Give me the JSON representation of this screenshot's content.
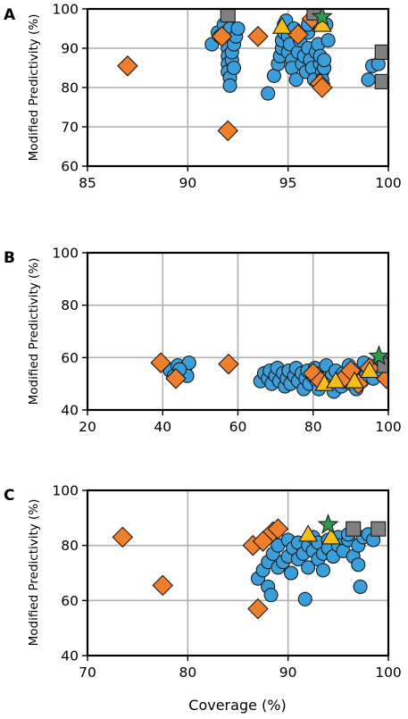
{
  "chart_data": [
    {
      "panel": "A",
      "type": "scatter",
      "xlim": [
        85,
        100
      ],
      "ylim": [
        60,
        100
      ],
      "xticks": [
        "85",
        "90",
        "95",
        "100"
      ],
      "yticks": [
        "60",
        "70",
        "80",
        "90",
        "100"
      ],
      "xlabel": "",
      "ylabel": "Modified Predictivity (%)",
      "grid": true,
      "series": [
        {
          "marker": "circle",
          "color": "#3a9edb",
          "points": [
            [
              91.2,
              91
            ],
            [
              91.5,
              94
            ],
            [
              91.6,
              93
            ],
            [
              91.8,
              96
            ],
            [
              91.9,
              92
            ],
            [
              92,
              90
            ],
            [
              92,
              88
            ],
            [
              92,
              86
            ],
            [
              92,
              84
            ],
            [
              92.1,
              95
            ],
            [
              92.1,
              82.5
            ],
            [
              92.2,
              87
            ],
            [
              92.2,
              89
            ],
            [
              92.3,
              85
            ],
            [
              92.3,
              91
            ],
            [
              92.4,
              93
            ],
            [
              92.1,
              80.5
            ],
            [
              92.5,
              95
            ],
            [
              94,
              78.5
            ],
            [
              94.3,
              83
            ],
            [
              94.5,
              86
            ],
            [
              94.6,
              88
            ],
            [
              94.7,
              90
            ],
            [
              94.7,
              92
            ],
            [
              94.8,
              94
            ],
            [
              94.8,
              96
            ],
            [
              94.9,
              97
            ],
            [
              95,
              93
            ],
            [
              95,
              89
            ],
            [
              95.1,
              91
            ],
            [
              95.2,
              87
            ],
            [
              95.2,
              85
            ],
            [
              95.3,
              95
            ],
            [
              95.4,
              82
            ],
            [
              95.5,
              89
            ],
            [
              95.6,
              92
            ],
            [
              95.7,
              86
            ],
            [
              95.8,
              88
            ],
            [
              95.9,
              84
            ],
            [
              96,
              90
            ],
            [
              96,
              94
            ],
            [
              96,
              96
            ],
            [
              96.1,
              87
            ],
            [
              96.2,
              85
            ],
            [
              96.3,
              82
            ],
            [
              96.4,
              89
            ],
            [
              96.5,
              91
            ],
            [
              96.6,
              86
            ],
            [
              96.6,
              88
            ],
            [
              96.7,
              84
            ],
            [
              96.7,
              82
            ],
            [
              96.8,
              85
            ],
            [
              96.8,
              87
            ],
            [
              96.9,
              96
            ],
            [
              97,
              92
            ],
            [
              99,
              82
            ],
            [
              99.2,
              85.5
            ],
            [
              99.5,
              86
            ]
          ]
        },
        {
          "marker": "diamond",
          "color": "#f07f2c",
          "points": [
            [
              87,
              85.5
            ],
            [
              91.7,
              93
            ],
            [
              92,
              69
            ],
            [
              93.5,
              93
            ],
            [
              95.5,
              93.5
            ],
            [
              96.2,
              97.5
            ],
            [
              96.6,
              81
            ],
            [
              96.7,
              80
            ]
          ]
        },
        {
          "marker": "triangle",
          "color": "#f5bd17",
          "points": [
            [
              94.7,
              95.5
            ],
            [
              96.7,
              96
            ]
          ]
        },
        {
          "marker": "square",
          "color": "#808080",
          "points": [
            [
              92,
              98.5
            ],
            [
              96.3,
              99
            ],
            [
              99.7,
              89
            ],
            [
              99.7,
              81.5
            ]
          ]
        },
        {
          "marker": "star",
          "color": "#2e9a4e",
          "points": [
            [
              96.7,
              98
            ]
          ]
        }
      ]
    },
    {
      "panel": "B",
      "type": "scatter",
      "xlim": [
        20,
        100
      ],
      "ylim": [
        40,
        100
      ],
      "xticks": [
        "20",
        "40",
        "60",
        "80",
        "100"
      ],
      "yticks": [
        "40",
        "60",
        "80",
        "100"
      ],
      "xlabel": "",
      "ylabel": "Modified Predictivity (%)",
      "grid": true,
      "series": [
        {
          "marker": "circle",
          "color": "#3a9edb",
          "points": [
            [
              42,
              55
            ],
            [
              43,
              53
            ],
            [
              44,
              57
            ],
            [
              45,
              54
            ],
            [
              46,
              56
            ],
            [
              47,
              58
            ],
            [
              46.5,
              53
            ],
            [
              44.5,
              55.5
            ],
            [
              66,
              51
            ],
            [
              67,
              54
            ],
            [
              68,
              52
            ],
            [
              68.5,
              55
            ],
            [
              69,
              50
            ],
            [
              70,
              53
            ],
            [
              70.5,
              56
            ],
            [
              71,
              51
            ],
            [
              72,
              54
            ],
            [
              72.5,
              49
            ],
            [
              73,
              52
            ],
            [
              73.5,
              55
            ],
            [
              74,
              50
            ],
            [
              75,
              53
            ],
            [
              75.5,
              56
            ],
            [
              76,
              51
            ],
            [
              77,
              54
            ],
            [
              77.5,
              48
            ],
            [
              78,
              52
            ],
            [
              78.5,
              55
            ],
            [
              79,
              50
            ],
            [
              80,
              53
            ],
            [
              80.5,
              56
            ],
            [
              81,
              51
            ],
            [
              81.5,
              48
            ],
            [
              82,
              54
            ],
            [
              83,
              52
            ],
            [
              83.5,
              57
            ],
            [
              84,
              50
            ],
            [
              85,
              53
            ],
            [
              85.5,
              47
            ],
            [
              86,
              55
            ],
            [
              87,
              51
            ],
            [
              87.5,
              49
            ],
            [
              88,
              54
            ],
            [
              89,
              52
            ],
            [
              89.5,
              57
            ],
            [
              90,
              50
            ],
            [
              91,
              53
            ],
            [
              91.5,
              48
            ],
            [
              92,
              55
            ],
            [
              93,
              51
            ],
            [
              93.5,
              58
            ],
            [
              94,
              53
            ],
            [
              95,
              56
            ],
            [
              96,
              52
            ],
            [
              96.5,
              57
            ],
            [
              97,
              55
            ],
            [
              98,
              54
            ],
            [
              99,
              58
            ],
            [
              99.5,
              56
            ]
          ]
        },
        {
          "marker": "diamond",
          "color": "#f07f2c",
          "points": [
            [
              39.5,
              58
            ],
            [
              43.5,
              52
            ],
            [
              57.5,
              57.5
            ],
            [
              80,
              54
            ],
            [
              82,
              51
            ],
            [
              88,
              52
            ],
            [
              90,
              55
            ],
            [
              92,
              50
            ],
            [
              95,
              56
            ],
            [
              99.5,
              52
            ]
          ]
        },
        {
          "marker": "triangle",
          "color": "#f5bd17",
          "points": [
            [
              83,
              50
            ],
            [
              86,
              51
            ],
            [
              91,
              51
            ],
            [
              95,
              55
            ]
          ]
        },
        {
          "marker": "square",
          "color": "#808080",
          "points": [
            [
              99,
              57
            ]
          ]
        },
        {
          "marker": "star",
          "color": "#2e9a4e",
          "points": [
            [
              97.5,
              60.5
            ]
          ]
        }
      ]
    },
    {
      "panel": "C",
      "type": "scatter",
      "xlim": [
        70,
        100
      ],
      "ylim": [
        40,
        100
      ],
      "xticks": [
        "70",
        "80",
        "90",
        "100"
      ],
      "yticks": [
        "40",
        "60",
        "80",
        "100"
      ],
      "xlabel": "Coverage (%)",
      "ylabel": "Modified Predictivity (%)",
      "grid": true,
      "series": [
        {
          "marker": "circle",
          "color": "#3a9edb",
          "points": [
            [
              87,
              68
            ],
            [
              87.5,
              71
            ],
            [
              88,
              74
            ],
            [
              88,
              65
            ],
            [
              88.3,
              62
            ],
            [
              88.5,
              77
            ],
            [
              89,
              80
            ],
            [
              89,
              72
            ],
            [
              89.5,
              74
            ],
            [
              90,
              82
            ],
            [
              90,
              76
            ],
            [
              90.3,
              70
            ],
            [
              90.5,
              79
            ],
            [
              91,
              81
            ],
            [
              91,
              75
            ],
            [
              91.5,
              77
            ],
            [
              91.7,
              60.5
            ],
            [
              92,
              80
            ],
            [
              92,
              72
            ],
            [
              92.5,
              78
            ],
            [
              92.5,
              83
            ],
            [
              93,
              75
            ],
            [
              93,
              81
            ],
            [
              93.5,
              77
            ],
            [
              93.5,
              71
            ],
            [
              94,
              82
            ],
            [
              94,
              79
            ],
            [
              94.5,
              76
            ],
            [
              95,
              83
            ],
            [
              95,
              80
            ],
            [
              95.5,
              78
            ],
            [
              96,
              82
            ],
            [
              96,
              84
            ],
            [
              96.5,
              76
            ],
            [
              97,
              80
            ],
            [
              97,
              73
            ],
            [
              97.2,
              65
            ],
            [
              97.5,
              83
            ],
            [
              98,
              84
            ],
            [
              98.5,
              82
            ]
          ]
        },
        {
          "marker": "diamond",
          "color": "#f07f2c",
          "points": [
            [
              73.5,
              83
            ],
            [
              77.5,
              65.5
            ],
            [
              86.5,
              80
            ],
            [
              87,
              57
            ],
            [
              87.5,
              81.5
            ],
            [
              88.5,
              85
            ],
            [
              89,
              86
            ]
          ]
        },
        {
          "marker": "triangle",
          "color": "#f5bd17",
          "points": [
            [
              92,
              84
            ],
            [
              94.3,
              83
            ]
          ]
        },
        {
          "marker": "square",
          "color": "#808080",
          "points": [
            [
              96.5,
              86
            ],
            [
              99,
              86
            ]
          ]
        },
        {
          "marker": "star",
          "color": "#2e9a4e",
          "points": [
            [
              94,
              87.5
            ]
          ]
        }
      ]
    }
  ]
}
